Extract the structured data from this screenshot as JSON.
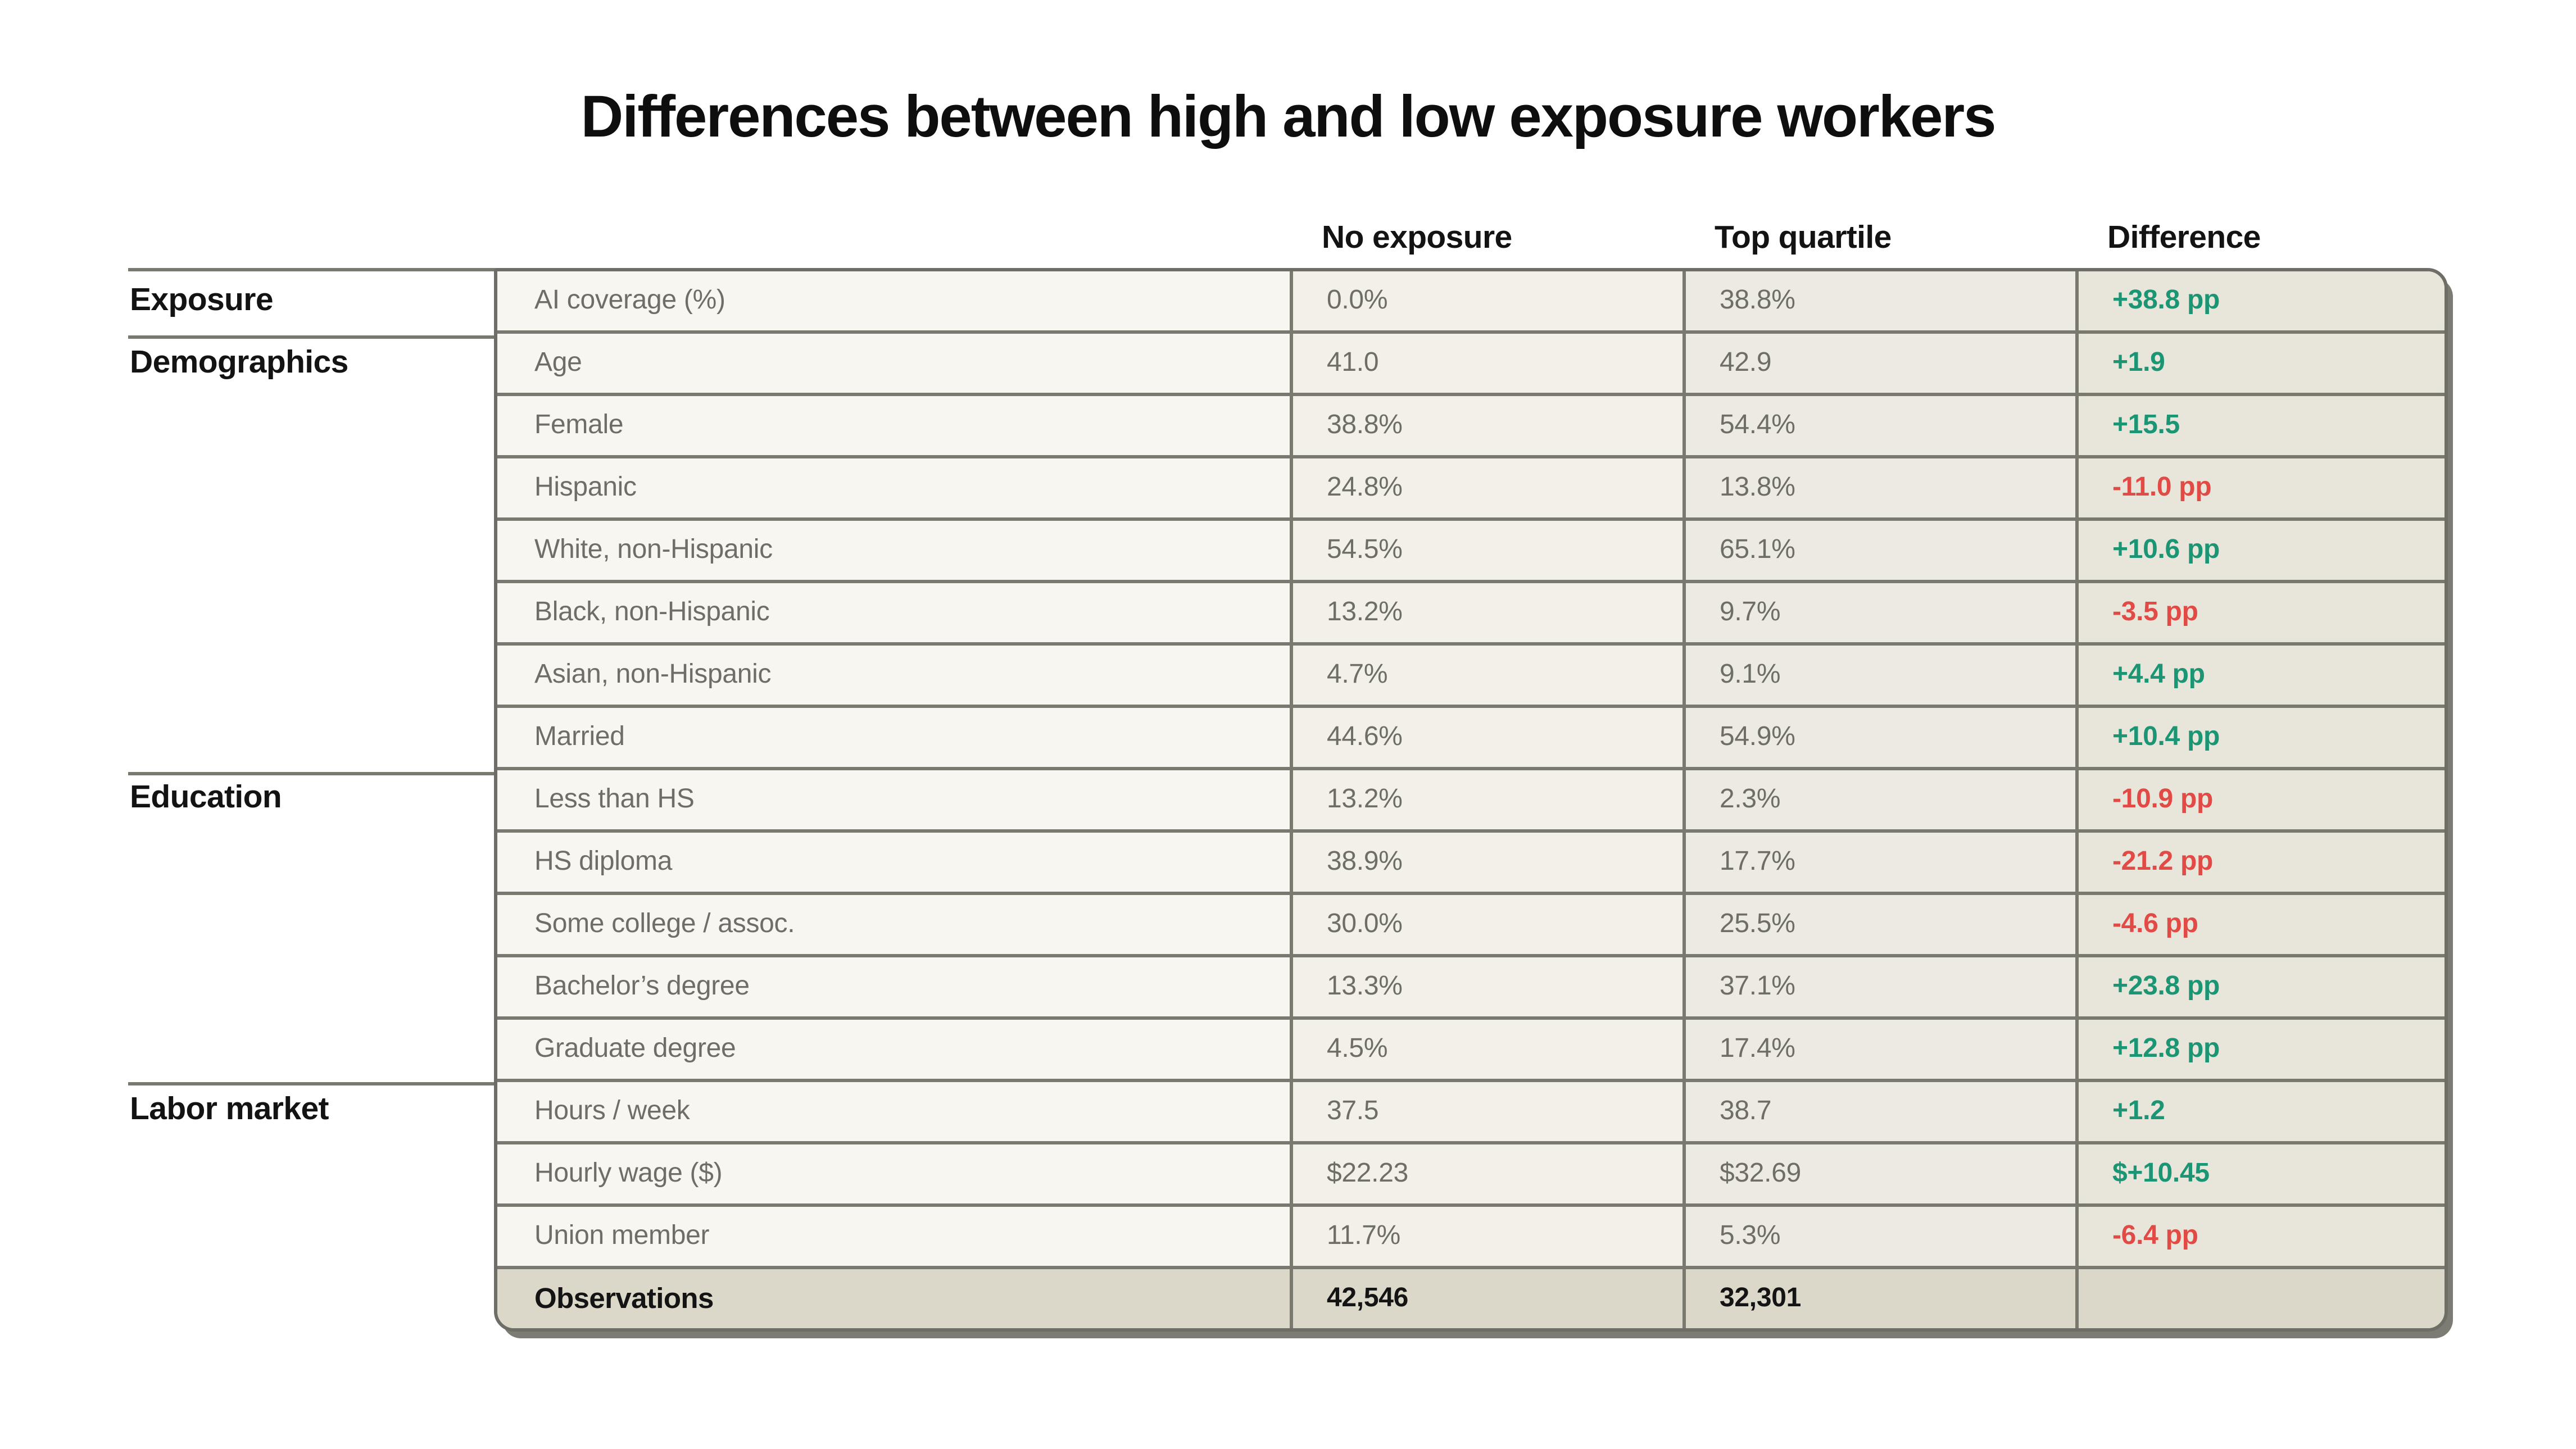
{
  "title": "Differences between high and low exposure workers",
  "columns": [
    "No exposure",
    "Top quartile",
    "Difference"
  ],
  "colors": {
    "positive": "#1b9574",
    "negative": "#e24a45"
  },
  "chart_data": {
    "type": "table",
    "title": "Differences between high and low exposure workers",
    "column_headers": [
      "No exposure",
      "Top quartile",
      "Difference"
    ],
    "groups": [
      {
        "category": "Exposure",
        "rows": [
          {
            "label": "AI coverage (%)",
            "no_exposure": "0.0%",
            "top_quartile": "38.8%",
            "difference": "+38.8 pp"
          }
        ]
      },
      {
        "category": "Demographics",
        "rows": [
          {
            "label": "Age",
            "no_exposure": "41.0",
            "top_quartile": "42.9",
            "difference": "+1.9"
          },
          {
            "label": "Female",
            "no_exposure": "38.8%",
            "top_quartile": "54.4%",
            "difference": "+15.5"
          },
          {
            "label": "Hispanic",
            "no_exposure": "24.8%",
            "top_quartile": "13.8%",
            "difference": "-11.0 pp"
          },
          {
            "label": "White, non-Hispanic",
            "no_exposure": "54.5%",
            "top_quartile": "65.1%",
            "difference": "+10.6 pp"
          },
          {
            "label": "Black, non-Hispanic",
            "no_exposure": "13.2%",
            "top_quartile": "9.7%",
            "difference": "-3.5 pp"
          },
          {
            "label": "Asian, non-Hispanic",
            "no_exposure": "4.7%",
            "top_quartile": "9.1%",
            "difference": "+4.4 pp"
          },
          {
            "label": "Married",
            "no_exposure": "44.6%",
            "top_quartile": "54.9%",
            "difference": "+10.4 pp"
          }
        ]
      },
      {
        "category": "Education",
        "rows": [
          {
            "label": "Less than HS",
            "no_exposure": "13.2%",
            "top_quartile": "2.3%",
            "difference": "-10.9 pp"
          },
          {
            "label": "HS diploma",
            "no_exposure": "38.9%",
            "top_quartile": "17.7%",
            "difference": "-21.2 pp"
          },
          {
            "label": "Some college / assoc.",
            "no_exposure": "30.0%",
            "top_quartile": "25.5%",
            "difference": "-4.6 pp"
          },
          {
            "label": "Bachelor’s degree",
            "no_exposure": "13.3%",
            "top_quartile": "37.1%",
            "difference": "+23.8 pp"
          },
          {
            "label": "Graduate degree",
            "no_exposure": "4.5%",
            "top_quartile": "17.4%",
            "difference": "+12.8 pp"
          }
        ]
      },
      {
        "category": "Labor market",
        "rows": [
          {
            "label": "Hours / week",
            "no_exposure": "37.5",
            "top_quartile": "38.7",
            "difference": "+1.2"
          },
          {
            "label": "Hourly wage ($)",
            "no_exposure": "$22.23",
            "top_quartile": "$32.69",
            "difference": "$+10.45"
          },
          {
            "label": "Union member",
            "no_exposure": "11.7%",
            "top_quartile": "5.3%",
            "difference": "-6.4 pp"
          }
        ]
      }
    ],
    "footer_row": {
      "label": "Observations",
      "no_exposure": "42,546",
      "top_quartile": "32,301",
      "difference": ""
    }
  }
}
